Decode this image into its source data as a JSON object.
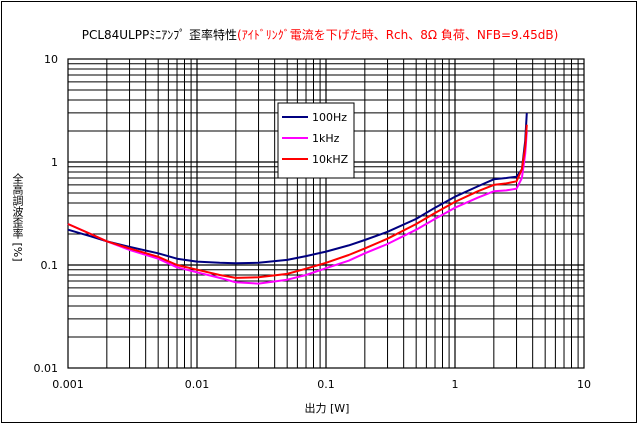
{
  "chart_data": {
    "type": "line",
    "title_main": "PCL84ULPPﾐﾆｱﾝﾌﾟ 歪率特性",
    "title_note": "(ｱｲﾄﾞﾘﾝｸﾞ電流を下げた時、Rch、8Ω 負荷、NFB=9.45dB)",
    "xlabel": "出力 [W]",
    "ylabel": "全高調波歪率 [%]",
    "x_scale": "log",
    "y_scale": "log",
    "xlim": [
      0.001,
      10
    ],
    "ylim": [
      0.01,
      10
    ],
    "x_ticks": [
      "0.001",
      "0.01",
      "0.1",
      "1",
      "10"
    ],
    "y_ticks": [
      "10",
      "1",
      "0.1",
      "0.01"
    ],
    "grid": true,
    "legend_position": "upper-center",
    "series": [
      {
        "name": "100Hz",
        "color": "#000080",
        "points": [
          [
            0.001,
            0.22
          ],
          [
            0.0015,
            0.19
          ],
          [
            0.002,
            0.17
          ],
          [
            0.003,
            0.15
          ],
          [
            0.005,
            0.13
          ],
          [
            0.007,
            0.115
          ],
          [
            0.01,
            0.108
          ],
          [
            0.015,
            0.105
          ],
          [
            0.02,
            0.104
          ],
          [
            0.03,
            0.105
          ],
          [
            0.05,
            0.112
          ],
          [
            0.07,
            0.122
          ],
          [
            0.1,
            0.135
          ],
          [
            0.15,
            0.155
          ],
          [
            0.2,
            0.175
          ],
          [
            0.3,
            0.21
          ],
          [
            0.5,
            0.28
          ],
          [
            0.7,
            0.36
          ],
          [
            1.0,
            0.46
          ],
          [
            1.5,
            0.58
          ],
          [
            2.0,
            0.68
          ],
          [
            2.5,
            0.7
          ],
          [
            3.0,
            0.72
          ],
          [
            3.3,
            0.85
          ],
          [
            3.5,
            1.6
          ],
          [
            3.6,
            3.0
          ]
        ]
      },
      {
        "name": "1kHz",
        "color": "#ff00ff",
        "points": [
          [
            0.001,
            0.25
          ],
          [
            0.0015,
            0.2
          ],
          [
            0.002,
            0.17
          ],
          [
            0.003,
            0.14
          ],
          [
            0.005,
            0.115
          ],
          [
            0.007,
            0.095
          ],
          [
            0.01,
            0.085
          ],
          [
            0.015,
            0.075
          ],
          [
            0.02,
            0.068
          ],
          [
            0.03,
            0.066
          ],
          [
            0.05,
            0.072
          ],
          [
            0.07,
            0.08
          ],
          [
            0.1,
            0.093
          ],
          [
            0.15,
            0.11
          ],
          [
            0.2,
            0.13
          ],
          [
            0.3,
            0.16
          ],
          [
            0.5,
            0.22
          ],
          [
            0.7,
            0.28
          ],
          [
            1.0,
            0.36
          ],
          [
            1.5,
            0.45
          ],
          [
            2.0,
            0.52
          ],
          [
            2.5,
            0.53
          ],
          [
            3.0,
            0.55
          ],
          [
            3.3,
            0.7
          ],
          [
            3.5,
            1.2
          ],
          [
            3.6,
            2.0
          ]
        ]
      },
      {
        "name": "10kHZ",
        "color": "#ff0000",
        "points": [
          [
            0.001,
            0.25
          ],
          [
            0.0015,
            0.2
          ],
          [
            0.002,
            0.17
          ],
          [
            0.003,
            0.145
          ],
          [
            0.005,
            0.12
          ],
          [
            0.007,
            0.1
          ],
          [
            0.01,
            0.09
          ],
          [
            0.015,
            0.08
          ],
          [
            0.02,
            0.075
          ],
          [
            0.03,
            0.076
          ],
          [
            0.05,
            0.082
          ],
          [
            0.07,
            0.092
          ],
          [
            0.1,
            0.105
          ],
          [
            0.15,
            0.125
          ],
          [
            0.2,
            0.145
          ],
          [
            0.3,
            0.18
          ],
          [
            0.5,
            0.25
          ],
          [
            0.7,
            0.32
          ],
          [
            1.0,
            0.41
          ],
          [
            1.5,
            0.52
          ],
          [
            2.0,
            0.6
          ],
          [
            2.5,
            0.62
          ],
          [
            3.0,
            0.65
          ],
          [
            3.3,
            0.85
          ],
          [
            3.5,
            1.4
          ],
          [
            3.6,
            2.3
          ]
        ]
      }
    ]
  }
}
